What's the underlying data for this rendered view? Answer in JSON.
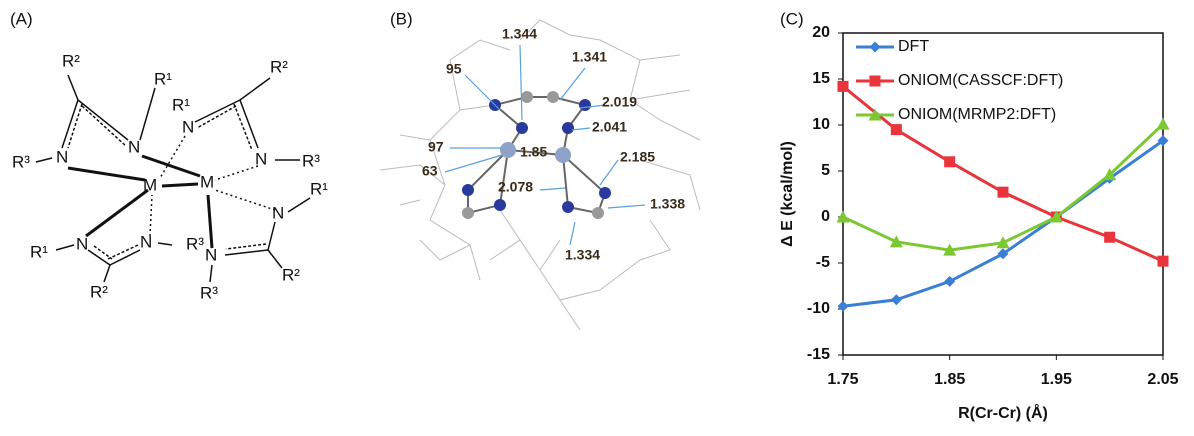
{
  "panel_a": {
    "label": "(A)",
    "atoms": [
      "R²",
      "R¹",
      "R²",
      "R¹",
      "R³",
      "N",
      "N",
      "N",
      "N",
      "R³",
      "M",
      "M",
      "R¹",
      "N",
      "N",
      "R¹",
      "N",
      "R³",
      "N",
      "R²",
      "R³",
      "R²"
    ]
  },
  "panel_b": {
    "label": "(B)",
    "labels": [
      "1.344",
      "1.341",
      "95",
      "2.019",
      "2.041",
      "97",
      "1.85",
      "63",
      "2.185",
      "2.078",
      "1.338",
      "1.334"
    ]
  },
  "chart_data": {
    "type": "line",
    "label": "(C)",
    "x_label": "R(Cr-Cr) (Å)",
    "y_label": "Δ E (kcal/mol)",
    "x": [
      1.75,
      1.8,
      1.85,
      1.9,
      1.95,
      2.0,
      2.05
    ],
    "series": [
      {
        "name": "DFT",
        "color": "#3a7fd5",
        "marker": "diamond",
        "values": [
          -9.7,
          -9.0,
          -7.0,
          -4.0,
          0,
          4.2,
          8.3
        ]
      },
      {
        "name": "ONIOM(CASSCF:DFT)",
        "color": "#e8343a",
        "marker": "square",
        "values": [
          14.2,
          9.5,
          6.0,
          2.7,
          0,
          -2.2,
          -4.8
        ]
      },
      {
        "name": "ONIOM(MRMP2:DFT)",
        "color": "#7cc832",
        "marker": "triangle",
        "values": [
          0,
          -2.7,
          -3.6,
          -2.8,
          0,
          4.6,
          10.1
        ]
      }
    ],
    "xlim": [
      1.75,
      2.05
    ],
    "xticks": [
      1.75,
      1.85,
      1.95,
      2.05
    ],
    "ylim": [
      -15,
      20
    ],
    "yticks": [
      -15,
      -10,
      -5,
      0,
      5,
      10,
      15,
      20
    ],
    "grid": false,
    "legend": "top-left"
  }
}
